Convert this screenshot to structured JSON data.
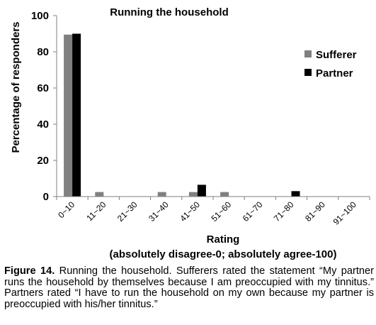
{
  "chart_data": {
    "type": "bar",
    "title": "Running the household",
    "xlabel": "Rating",
    "xlabel_sub": "(absolutely disagree-0; absolutely agree-100)",
    "ylabel": "Percentage of responders",
    "ylim": [
      0,
      100
    ],
    "yticks": [
      0,
      20,
      40,
      60,
      80,
      100
    ],
    "categories": [
      "0~10",
      "11~20",
      "21~30",
      "31~40",
      "41~50",
      "51~60",
      "61~70",
      "71~80",
      "81~90",
      "91~100"
    ],
    "series": [
      {
        "name": "Sufferer",
        "color": "#808080",
        "values": [
          89.5,
          2.5,
          0,
          2.5,
          2.5,
          2.5,
          0,
          0,
          0,
          0
        ]
      },
      {
        "name": "Partner",
        "color": "#000000",
        "values": [
          90,
          0,
          0,
          0,
          6.5,
          0,
          0,
          3,
          0,
          0
        ]
      }
    ],
    "legend_position": "right",
    "grid": false
  },
  "caption": {
    "label": "Figure 14.",
    "text": " Running the household. Sufferers rated the statement “My partner runs the household by themselves because I am preoccupied with my tinnitus.” Partners rated “I have to run the household on my own because my partner is preoccupied with his/her tinnitus.”"
  }
}
